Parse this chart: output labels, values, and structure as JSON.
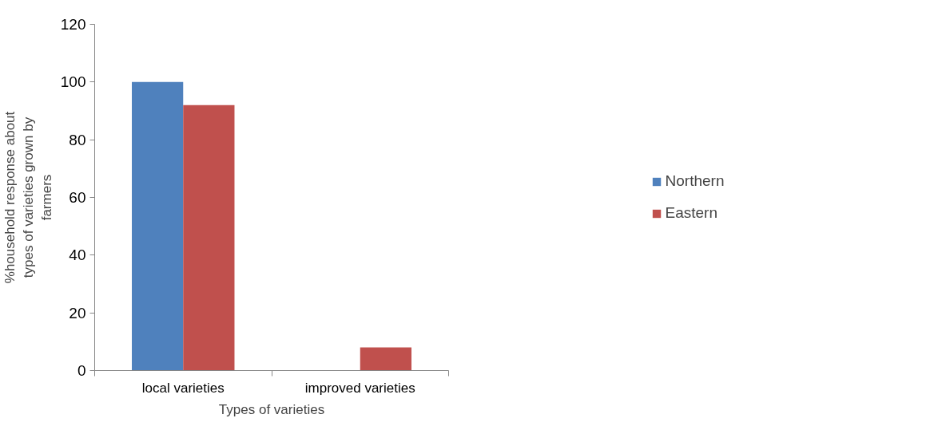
{
  "chart_data": {
    "type": "bar",
    "xlabel": "Types of varieties",
    "ylabel": "%household response about types of varieties grown by farmers",
    "categories": [
      "local varieties",
      "improved varieties"
    ],
    "series": [
      {
        "name": "Northern",
        "color": "#4f81bd",
        "values": [
          100,
          0
        ]
      },
      {
        "name": "Eastern",
        "color": "#c0504d",
        "values": [
          92,
          8
        ]
      }
    ],
    "ylim": [
      0,
      120
    ],
    "yticks": [
      0,
      20,
      40,
      60,
      80,
      100,
      120
    ],
    "grid": false,
    "legend": "right"
  }
}
